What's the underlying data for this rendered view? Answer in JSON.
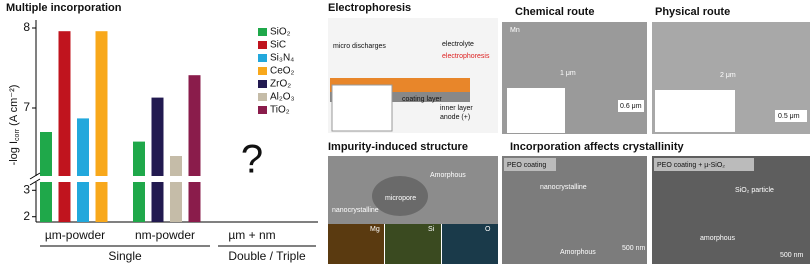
{
  "chart_data": {
    "type": "bar",
    "title": "Multiple incorporation",
    "y_label": "-log I",
    "y_label_sub": "corr",
    "y_label_unit": " (A cm⁻²)",
    "categories": [
      "µm-powder",
      "nm-powder",
      "µm + nm"
    ],
    "group_labels": [
      "Single",
      "Double / Triple"
    ],
    "annotation": "?",
    "series": [
      {
        "name": "SiO₂",
        "color": "#1fa84a",
        "values": [
          6.7,
          6.58,
          null
        ]
      },
      {
        "name": "SiC",
        "color": "#c0141e",
        "values": [
          7.96,
          null,
          null
        ]
      },
      {
        "name": "Si₃N₄",
        "color": "#22a8dc",
        "values": [
          6.87,
          null,
          null
        ]
      },
      {
        "name": "CeO₂",
        "color": "#f8a81b",
        "values": [
          7.96,
          null,
          null
        ]
      },
      {
        "name": "ZrO₂",
        "color": "#221a50",
        "values": [
          null,
          7.13,
          null
        ]
      },
      {
        "name": "Al₂O₃",
        "color": "#c5bca8",
        "values": [
          null,
          6.4,
          null
        ]
      },
      {
        "name": "TiO₂",
        "color": "#8a1c4b",
        "values": [
          null,
          7.41,
          null
        ]
      }
    ],
    "ylim": [
      1.8,
      8.05
    ],
    "ybreak": [
      3.2,
      6.2
    ],
    "yticks": [
      2,
      3,
      7,
      8
    ]
  },
  "panels": {
    "electrophoresis": {
      "title": "Electrophoresis",
      "labels": [
        "micro discharges",
        "electrolyte",
        "electrophoresis",
        "coating layer",
        "inner layer",
        "anode (+)"
      ]
    },
    "chemical": {
      "title": "Chemical route",
      "labels": [
        "Mn",
        "1 μm",
        "0.6 μm"
      ]
    },
    "physical": {
      "title": "Physical route",
      "labels": [
        "2 μm",
        "0.5 μm"
      ]
    },
    "impurity": {
      "title": "Impurity-induced structure",
      "labels": [
        "Amorphous",
        "micropore",
        "nanocrystalline",
        "Mg",
        "Si",
        "O"
      ]
    },
    "crystallinity": {
      "title": "Incorporation affects crystallinity",
      "left": [
        "PEO coating",
        "nanocrystalline",
        "Amorphous",
        "500 nm"
      ],
      "right": [
        "PEO coating + µ-SiO₂",
        "SiO₂ particle",
        "amorphous",
        "500 nm"
      ]
    }
  }
}
